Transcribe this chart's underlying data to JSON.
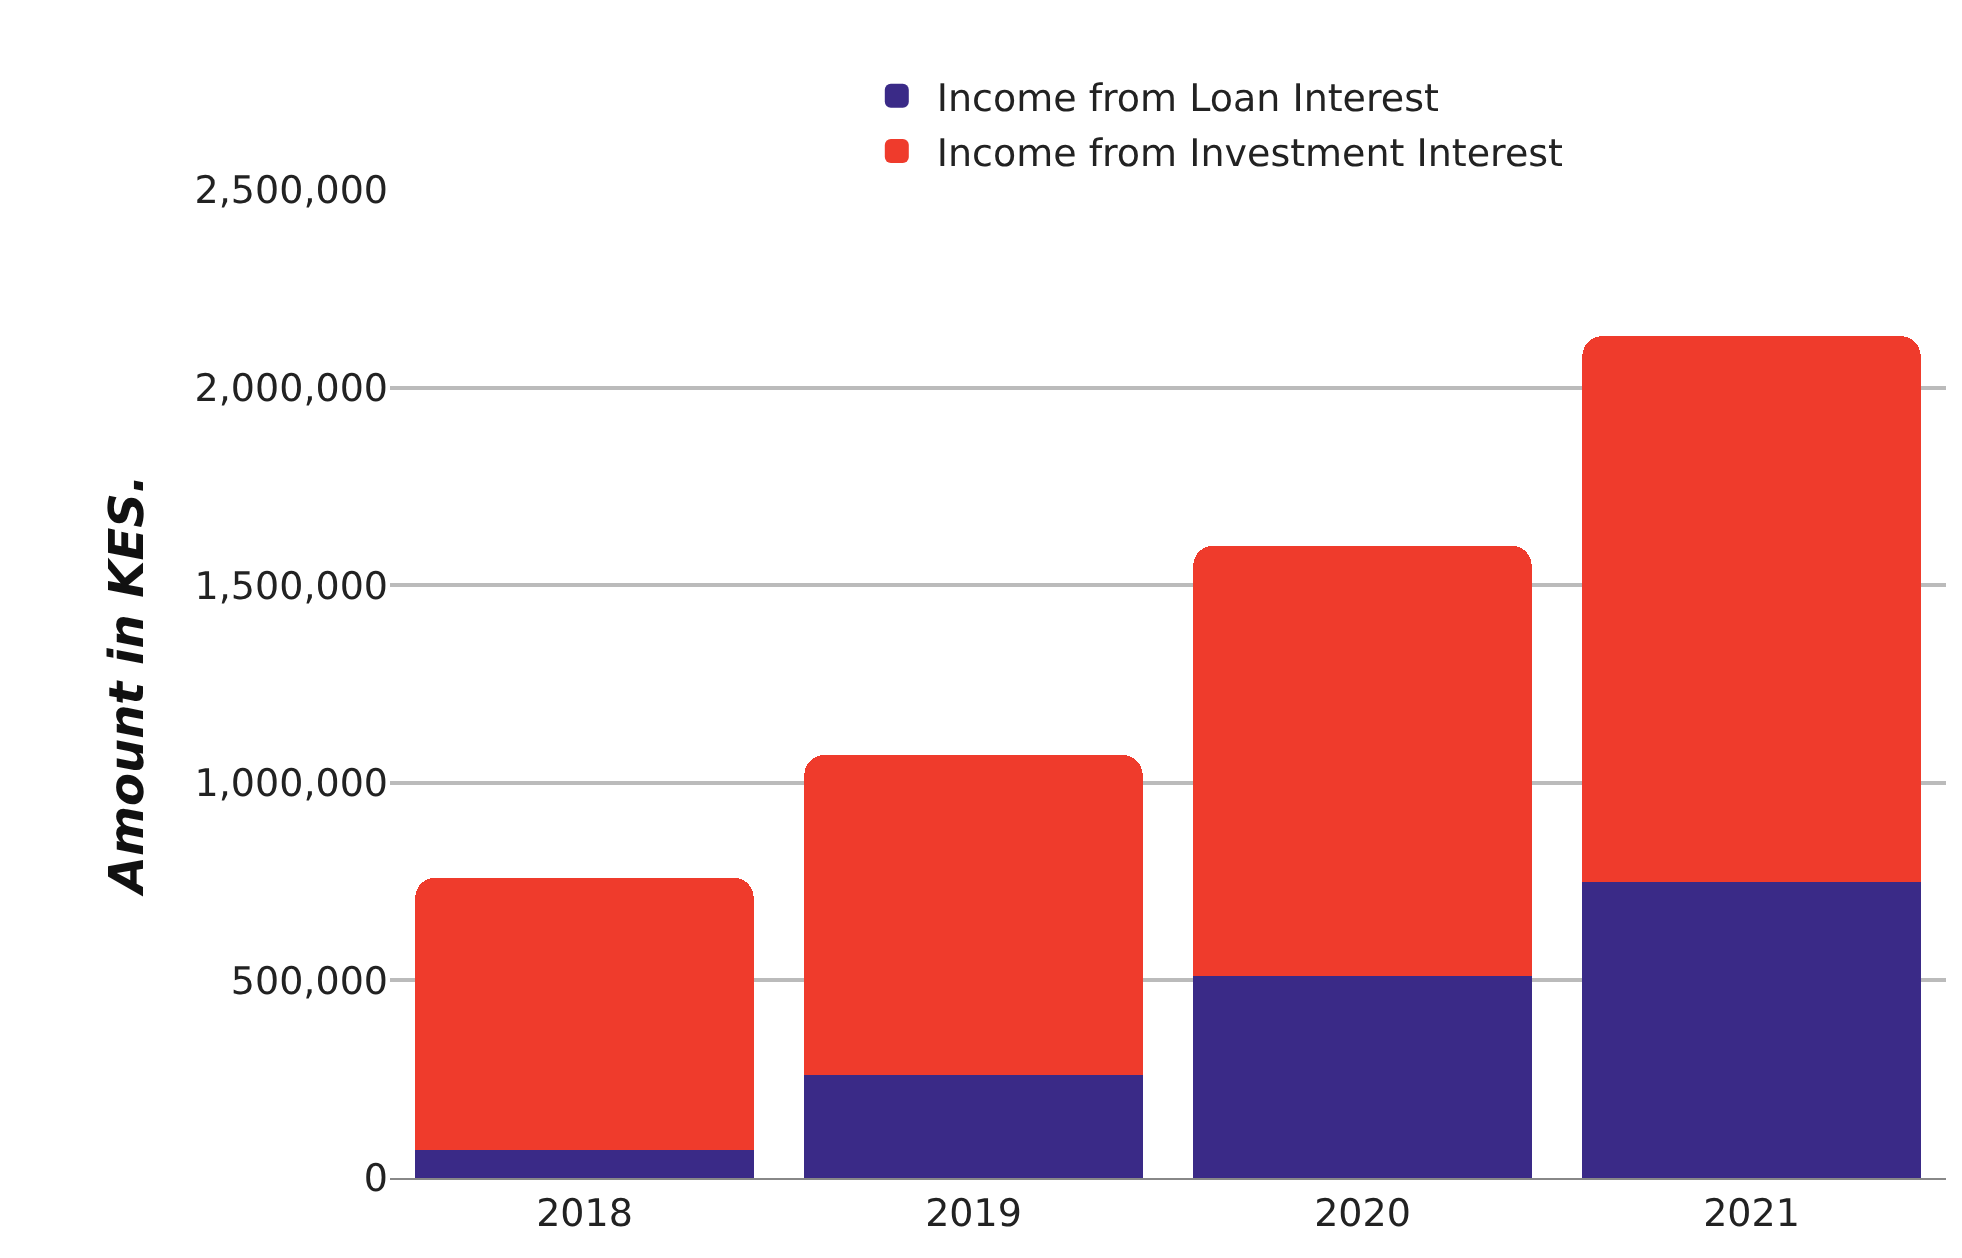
{
  "chart_data": {
    "type": "bar",
    "stacked": true,
    "ylabel": "Amount in KES.",
    "categories": [
      "2018",
      "2019",
      "2020",
      "2021"
    ],
    "series": [
      {
        "name": "Income from Loan Interest",
        "color": "#3a2a87",
        "values": [
          70000,
          260000,
          510000,
          750000
        ]
      },
      {
        "name": "Income from Investment Interest",
        "color": "#ef3b2c",
        "values": [
          690000,
          810000,
          1090000,
          1380000
        ]
      }
    ],
    "ylim": [
      0,
      2500000
    ],
    "yticks": [
      {
        "value": 0,
        "label": "0"
      },
      {
        "value": 500000,
        "label": "500,000"
      },
      {
        "value": 1000000,
        "label": "1,000,000"
      },
      {
        "value": 1500000,
        "label": "1,500,000"
      },
      {
        "value": 2000000,
        "label": "2,000,000"
      },
      {
        "value": 2500000,
        "label": "2,500,000"
      }
    ],
    "grid": "y",
    "legend": "top left"
  }
}
